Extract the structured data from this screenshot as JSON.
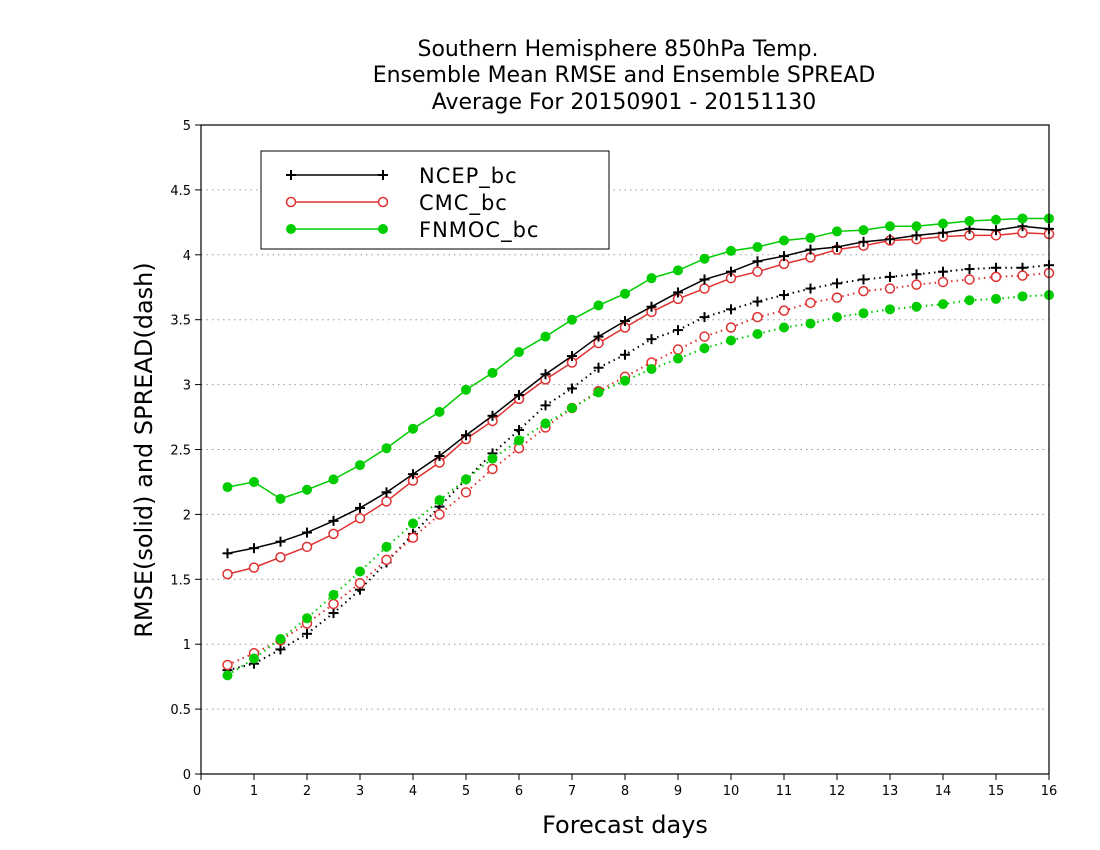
{
  "chart_data": {
    "type": "line",
    "title_lines": [
      "Southern Hemisphere 850hPa Temp.",
      "Ensemble Mean RMSE and Ensemble SPREAD",
      "Average For 20150901 - 20151130"
    ],
    "xlabel": "Forecast days",
    "ylabel": "RMSE(solid) and SPREAD(dash)",
    "xlim": [
      0,
      16
    ],
    "ylim": [
      0,
      5
    ],
    "x_ticks": [
      "0",
      "1",
      "2",
      "3",
      "4",
      "5",
      "6",
      "7",
      "8",
      "9",
      "10",
      "11",
      "12",
      "13",
      "14",
      "15",
      "16"
    ],
    "y_ticks": [
      "0",
      "0.5",
      "1",
      "1.5",
      "2",
      "2.5",
      "3",
      "3.5",
      "4",
      "4.5",
      "5"
    ],
    "grid": "horizontal dotted",
    "legend_position": "top-left",
    "x": [
      0.5,
      1,
      1.5,
      2,
      2.5,
      3,
      3.5,
      4,
      4.5,
      5,
      5.5,
      6,
      6.5,
      7,
      7.5,
      8,
      8.5,
      9,
      9.5,
      10,
      10.5,
      11,
      11.5,
      12,
      12.5,
      13,
      13.5,
      14,
      14.5,
      15,
      15.5,
      16
    ],
    "series": [
      {
        "name": "NCEP_bc",
        "color": "#000000",
        "marker": "plus",
        "style": "solid",
        "values": [
          1.7,
          1.74,
          1.79,
          1.86,
          1.95,
          2.05,
          2.17,
          2.31,
          2.45,
          2.61,
          2.76,
          2.92,
          3.08,
          3.22,
          3.37,
          3.49,
          3.6,
          3.71,
          3.81,
          3.87,
          3.95,
          3.99,
          4.04,
          4.06,
          4.1,
          4.12,
          4.15,
          4.17,
          4.2,
          4.19,
          4.22,
          4.2
        ]
      },
      {
        "name": "CMC_bc",
        "color": "#e03030",
        "marker": "open-circle",
        "style": "solid",
        "values": [
          1.54,
          1.59,
          1.67,
          1.75,
          1.85,
          1.97,
          2.1,
          2.26,
          2.4,
          2.58,
          2.72,
          2.89,
          3.04,
          3.17,
          3.32,
          3.44,
          3.56,
          3.66,
          3.74,
          3.82,
          3.87,
          3.93,
          3.98,
          4.04,
          4.07,
          4.11,
          4.12,
          4.14,
          4.15,
          4.15,
          4.17,
          4.16
        ]
      },
      {
        "name": "FNMOC_bc",
        "color": "#00cc00",
        "marker": "filled-circle",
        "style": "solid",
        "values": [
          2.21,
          2.25,
          2.12,
          2.19,
          2.27,
          2.38,
          2.51,
          2.66,
          2.79,
          2.96,
          3.09,
          3.25,
          3.37,
          3.5,
          3.61,
          3.7,
          3.82,
          3.88,
          3.97,
          4.03,
          4.06,
          4.11,
          4.13,
          4.18,
          4.19,
          4.22,
          4.22,
          4.24,
          4.26,
          4.27,
          4.28,
          4.28
        ]
      },
      {
        "name": "NCEP_bc SPREAD",
        "color": "#000000",
        "marker": "plus",
        "style": "dotted",
        "values": [
          0.8,
          0.85,
          0.96,
          1.08,
          1.24,
          1.42,
          1.63,
          1.85,
          2.06,
          2.27,
          2.47,
          2.65,
          2.84,
          2.97,
          3.13,
          3.23,
          3.35,
          3.42,
          3.52,
          3.58,
          3.64,
          3.69,
          3.74,
          3.78,
          3.81,
          3.83,
          3.85,
          3.87,
          3.89,
          3.9,
          3.9,
          3.92
        ]
      },
      {
        "name": "CMC_bc SPREAD",
        "color": "#e03030",
        "marker": "open-circle",
        "style": "dotted",
        "values": [
          0.84,
          0.93,
          1.03,
          1.16,
          1.31,
          1.47,
          1.65,
          1.82,
          2.0,
          2.17,
          2.35,
          2.51,
          2.67,
          2.82,
          2.95,
          3.06,
          3.17,
          3.27,
          3.37,
          3.44,
          3.52,
          3.57,
          3.63,
          3.67,
          3.72,
          3.74,
          3.77,
          3.79,
          3.81,
          3.83,
          3.84,
          3.86
        ]
      },
      {
        "name": "FNMOC_bc SPREAD",
        "color": "#00cc00",
        "marker": "filled-circle",
        "style": "dotted",
        "values": [
          0.76,
          0.89,
          1.04,
          1.2,
          1.38,
          1.56,
          1.75,
          1.93,
          2.11,
          2.27,
          2.43,
          2.57,
          2.7,
          2.82,
          2.94,
          3.03,
          3.12,
          3.2,
          3.28,
          3.34,
          3.39,
          3.44,
          3.47,
          3.52,
          3.55,
          3.58,
          3.6,
          3.62,
          3.65,
          3.66,
          3.68,
          3.69
        ]
      }
    ],
    "legend": [
      {
        "label": "NCEP_bc",
        "color": "#000000",
        "marker": "plus"
      },
      {
        "label": "CMC_bc",
        "color": "#e03030",
        "marker": "open-circle"
      },
      {
        "label": "FNMOC_bc",
        "color": "#00cc00",
        "marker": "filled-circle"
      }
    ]
  }
}
